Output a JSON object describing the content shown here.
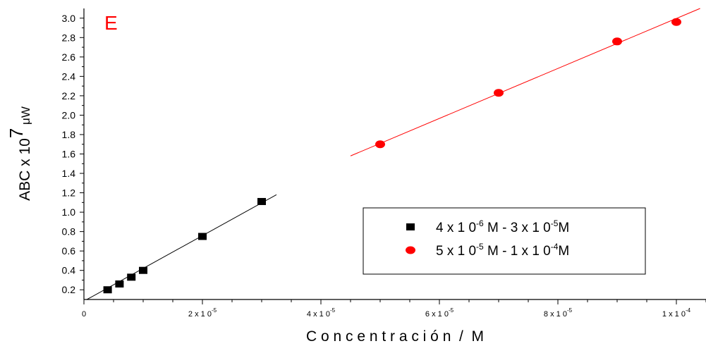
{
  "chart_data": {
    "type": "scatter",
    "panel_label": "E",
    "ylabel": {
      "main": "ABC x 10",
      "exp": "7",
      "unit": " μW"
    },
    "xlabel": "C o n c e n t r a c i ó n  /  M",
    "xlim": [
      0,
      0.000105
    ],
    "ylim": [
      0.1,
      3.1
    ],
    "x_ticks": [
      {
        "value": 0,
        "label": "0",
        "exp": ""
      },
      {
        "value": 2e-05,
        "label": "2 x 1 0",
        "exp": "-5"
      },
      {
        "value": 4e-05,
        "label": "4 x 1 0",
        "exp": "-5"
      },
      {
        "value": 6e-05,
        "label": "6 x 1 0",
        "exp": "-5"
      },
      {
        "value": 8e-05,
        "label": "8 x 1 0",
        "exp": "-5"
      },
      {
        "value": 0.0001,
        "label": "1 x 1 0",
        "exp": "-4"
      }
    ],
    "y_ticks": [
      {
        "value": 0.2,
        "label": "0.2"
      },
      {
        "value": 0.4,
        "label": "0.4"
      },
      {
        "value": 0.6,
        "label": "0.6"
      },
      {
        "value": 0.8,
        "label": "0.8"
      },
      {
        "value": 1.0,
        "label": "1.0"
      },
      {
        "value": 1.2,
        "label": "1.2"
      },
      {
        "value": 1.4,
        "label": "1.4"
      },
      {
        "value": 1.6,
        "label": "1.6"
      },
      {
        "value": 1.8,
        "label": "1.8"
      },
      {
        "value": 2.0,
        "label": "2.0"
      },
      {
        "value": 2.2,
        "label": "2.2"
      },
      {
        "value": 2.4,
        "label": "2.4"
      },
      {
        "value": 2.6,
        "label": "2.6"
      },
      {
        "value": 2.8,
        "label": "2.8"
      },
      {
        "value": 3.0,
        "label": "3.0"
      }
    ],
    "series": [
      {
        "name": "4 x 1 0 -6 M - 3 x 1 0 -5 M",
        "legend_parts": [
          "4 x 1 0",
          "-6",
          " M  -  3 x 1 0",
          "-5",
          "M"
        ],
        "marker": "square",
        "color": "#000000",
        "x": [
          4e-06,
          6e-06,
          8e-06,
          1e-05,
          2e-05,
          3e-05
        ],
        "y": [
          0.2,
          0.26,
          0.33,
          0.4,
          0.75,
          1.11
        ],
        "fit": {
          "x": [
            5e-07,
            3.25e-05
          ],
          "y": [
            0.1,
            1.18
          ]
        }
      },
      {
        "name": "5 x 1 0 -5 M - 1 x 1 0 -4 M",
        "legend_parts": [
          "5 x 1 0",
          "-5",
          " M  -  1 x 1 0",
          "-4",
          "M"
        ],
        "marker": "circle",
        "color": "#ff0000",
        "x": [
          5e-05,
          7e-05,
          9e-05,
          0.0001
        ],
        "y": [
          1.7,
          2.23,
          2.76,
          2.96
        ],
        "fit": {
          "x": [
            4.5e-05,
            0.000104
          ],
          "y": [
            1.58,
            3.1
          ]
        }
      }
    ],
    "legend_position": "bottom-right",
    "grid": false
  }
}
